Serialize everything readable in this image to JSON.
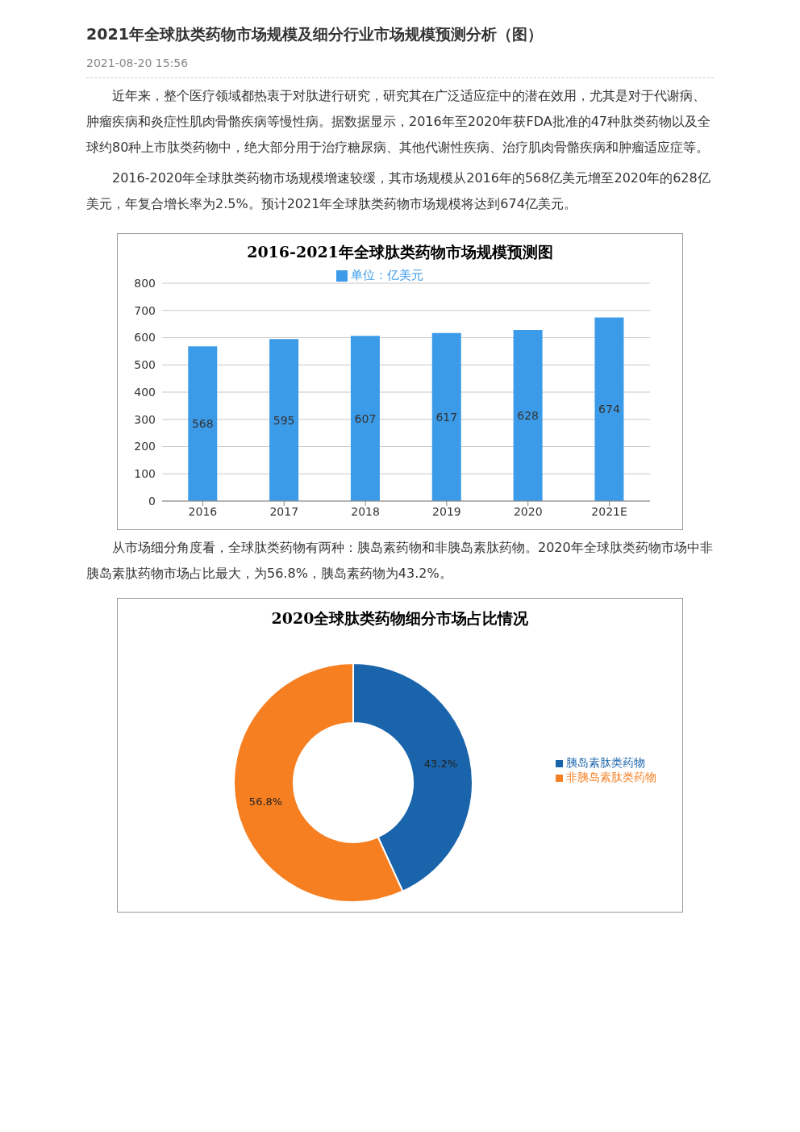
{
  "chart_data": [
    {
      "type": "other",
      "title": "2021年全球肽类药物市场规模及细分行业市场规模预测分析（图）",
      "subtitle": "2021-08-20 15:56",
      "annotations": [
        "近年来，整个医疗领域都热衷于对肽进行研究，研究其在广泛适应症中的潜在效用，尤其是对于代谢病、肿瘤疾病和炎症性肌肉骨骼疾病等慢性病。据数据显示，2016年至2020年获FDA批准的47种肽类药物以及全球约80种上市肽类药物中，绝大部分用于治疗糖尿病、其他代谢性疾病、治疗肌肉骨骼疾病和肿瘤适应症等。",
        "2016-2020年全球肽类药物市场规模增速较缓，其市场规模从2016年的568亿美元增至2020年的628亿美元，年复合增长率为2.5%。预计2021年全球肽类药物市场规模将达到674亿美元。"
      ]
    },
    {
      "type": "bar",
      "title": "2016-2021年全球肽类药物市场规模预测图",
      "categories": [
        "2016",
        "2017",
        "2018",
        "2019",
        "2020",
        "2021E"
      ],
      "series": [
        {
          "name": "单位：亿美元",
          "color": "#3c9be8",
          "values": [
            568,
            595,
            607,
            617,
            628,
            674
          ]
        }
      ],
      "ylim": [
        0,
        800
      ],
      "yticks": [
        0,
        100,
        200,
        300,
        400,
        500,
        600,
        700,
        800
      ],
      "grid": "y",
      "legend": "top",
      "data_labels": true
    },
    {
      "type": "other",
      "annotations": [
        "从市场细分角度看，全球肽类药物有两种：胰岛素药物和非胰岛素肽药物。2020年全球肽类药物市场中非胰岛素肽药物市场占比最大，为56.8%，胰岛素药物为43.2%。"
      ]
    },
    {
      "type": "donut",
      "title": "2020全球肽类药物细分市场占比情况",
      "categories": [
        "胰岛素肽类药物",
        "非胰岛素肽类药物"
      ],
      "values": [
        43.2,
        56.8
      ],
      "colors": [
        "#1a64ab",
        "#f67f22"
      ],
      "value_labels": [
        "43.2%",
        "56.8%"
      ],
      "legend": "right"
    }
  ]
}
